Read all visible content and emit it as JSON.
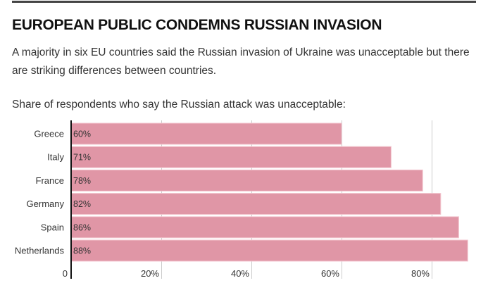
{
  "header": {
    "title": "EUROPEAN PUBLIC CONDEMNS RUSSIAN INVASION",
    "subtitle": "A majority in six EU countries said the Russian invasion of Ukraine was unacceptable but there are striking differences between countries.",
    "intro": "Share of respondents who say the Russian attack was unacceptable:"
  },
  "colors": {
    "bar": "#e096a6",
    "bar_border": "#f3c6cf",
    "grid": "#cccccc",
    "axis": "#111111"
  },
  "chart_data": {
    "type": "bar",
    "orientation": "horizontal",
    "title": "Share of respondents who say the Russian attack was unacceptable:",
    "categories": [
      "Greece",
      "Italy",
      "France",
      "Germany",
      "Spain",
      "Netherlands"
    ],
    "values": [
      60,
      71,
      78,
      82,
      86,
      88
    ],
    "value_labels": [
      "60%",
      "71%",
      "78%",
      "82%",
      "86%",
      "88%"
    ],
    "xlim": [
      0,
      92
    ],
    "xticks": [
      0,
      20,
      40,
      60,
      80
    ],
    "xtick_labels": [
      "0",
      "20%",
      "40%",
      "60%",
      "80%"
    ],
    "xlabel": "",
    "ylabel": "",
    "grid": true
  }
}
